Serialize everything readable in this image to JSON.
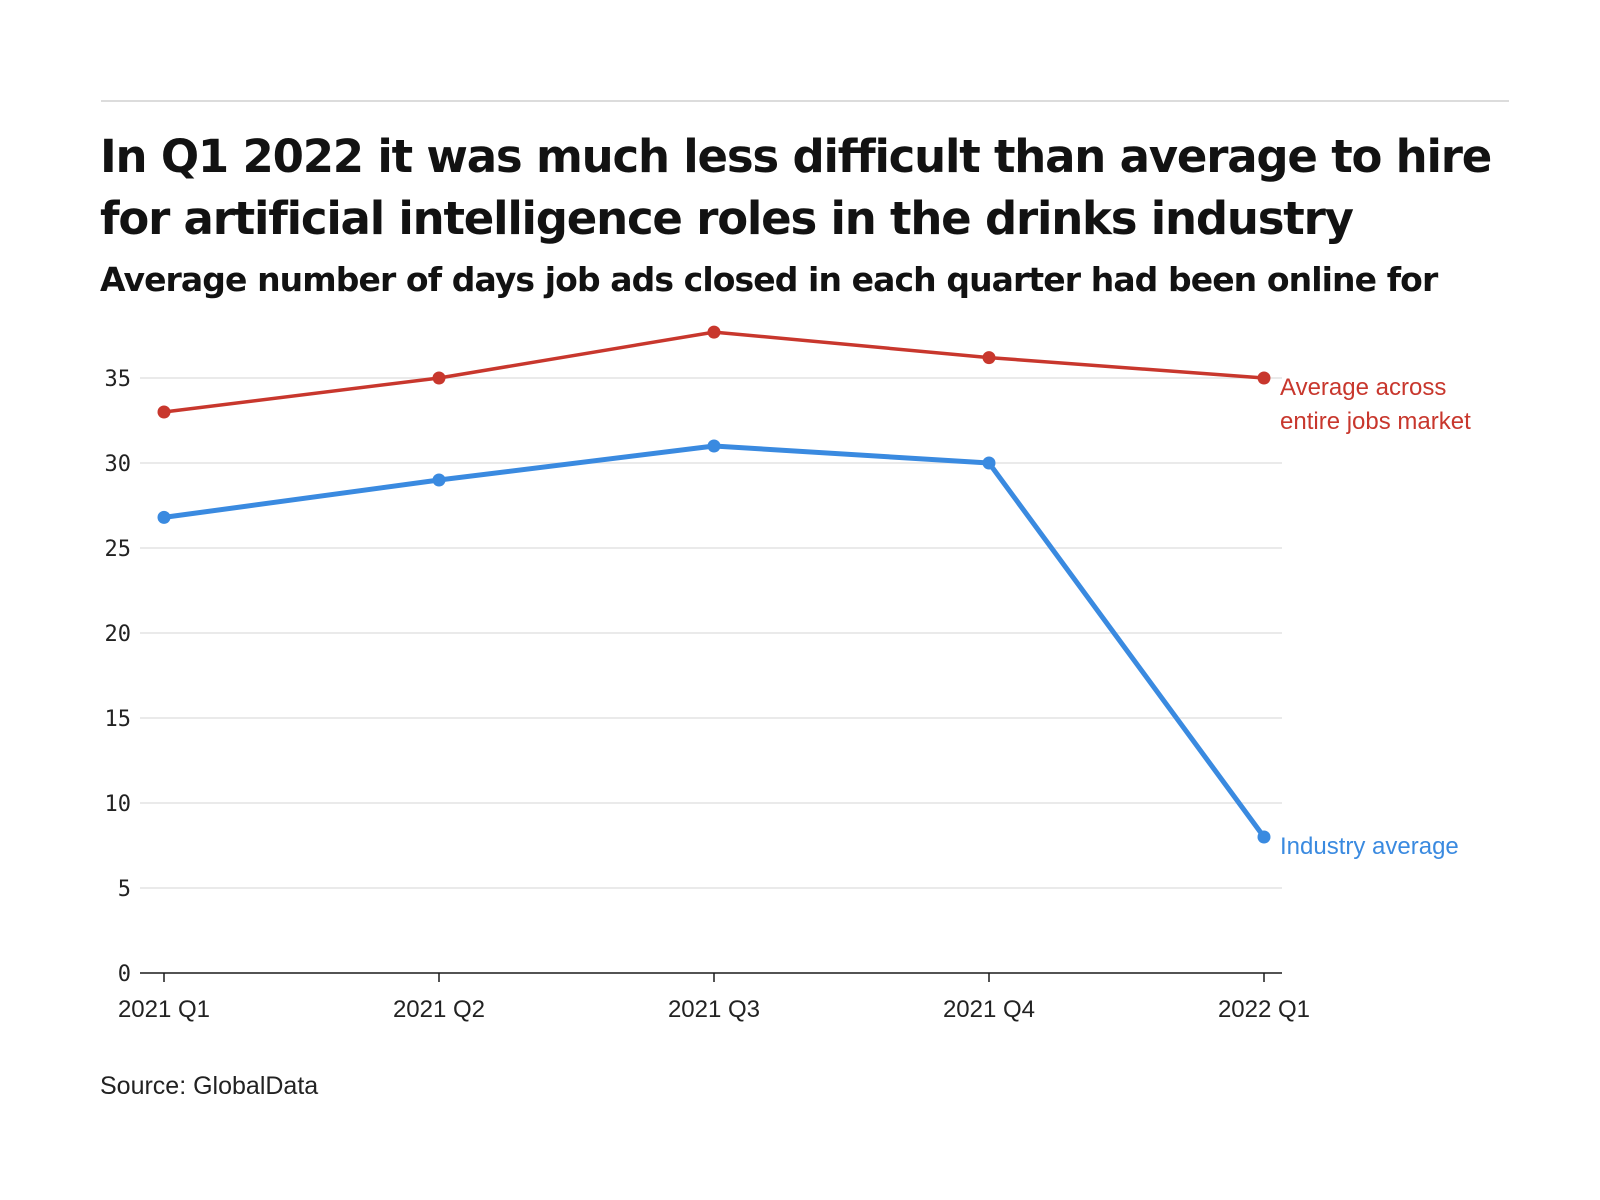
{
  "title": "In Q1 2022 it was much less difficult than average to hire for artificial intelligence roles in the drinks industry",
  "subtitle": "Average number of days job ads closed in each quarter had been online for",
  "source": "Source: GlobalData",
  "chart_data": {
    "type": "line",
    "title": "In Q1 2022 it was much less difficult than average to hire for artificial intelligence roles in the drinks industry",
    "subtitle": "Average number of days job ads closed in each quarter had been online for",
    "xlabel": "",
    "ylabel": "",
    "categories": [
      "2021 Q1",
      "2021 Q2",
      "2021 Q3",
      "2021 Q4",
      "2022 Q1"
    ],
    "ylim": [
      0,
      38
    ],
    "yticks": [
      0,
      5,
      10,
      15,
      20,
      25,
      30,
      35
    ],
    "grid": true,
    "series": [
      {
        "name": "Average across entire jobs market",
        "label_lines": [
          "Average across",
          "entire jobs market"
        ],
        "color": "#c8372d",
        "values": [
          33,
          35,
          37.7,
          36.2,
          35
        ]
      },
      {
        "name": "Industry average",
        "label_lines": [
          "Industry average"
        ],
        "color": "#3a8ae0",
        "values": [
          26.8,
          29,
          31,
          30,
          8
        ]
      }
    ]
  }
}
